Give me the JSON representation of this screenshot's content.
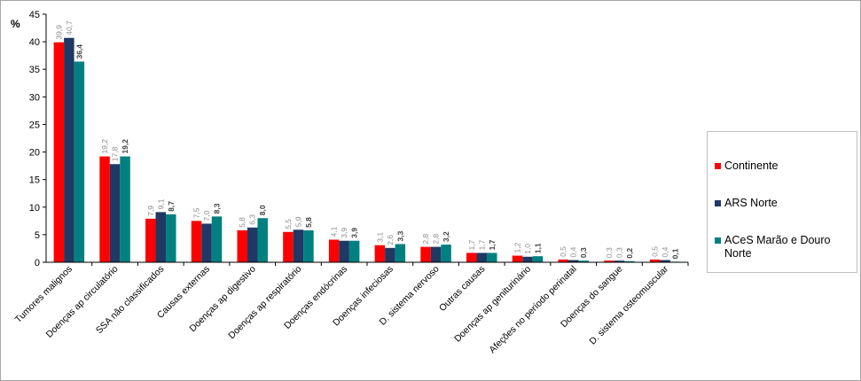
{
  "chart_data": {
    "type": "bar",
    "ylabel": "%",
    "ylim": [
      0,
      45
    ],
    "yticks": [
      0,
      5,
      10,
      15,
      20,
      25,
      30,
      35,
      40,
      45
    ],
    "categories": [
      "Tumores malignos",
      "Doenças ap circulatório",
      "SSA não classificados",
      "Causas externas",
      "Doenças ap digestivo",
      "Doenças ap respiratório",
      "Doenças endócrinas",
      "Doenças infeciosas",
      "D. sistema nervoso",
      "Outras causas",
      "Doenças ap geniturinário",
      "Afeções no período perinatal",
      "Doenças do sangue",
      "D. sistema osteomuscular"
    ],
    "series": [
      {
        "name": "Continente",
        "color": "#ff0000",
        "label_color": "#8c8c8c",
        "label_bold": false,
        "values": [
          39.9,
          19.2,
          7.9,
          7.5,
          5.8,
          5.5,
          4.1,
          3.1,
          2.8,
          1.7,
          1.2,
          0.5,
          0.3,
          0.5
        ],
        "labels": [
          "39,9",
          "19,2",
          "7,9",
          "7,5",
          "5,8",
          "5,5",
          "4,1",
          "3,1",
          "2,8",
          "1,7",
          "1,2",
          "0,5",
          "0,3",
          "0,5"
        ]
      },
      {
        "name": "ARS Norte",
        "color": "#1f3864",
        "label_color": "#8c8c8c",
        "label_bold": false,
        "values": [
          40.7,
          17.8,
          9.1,
          7.0,
          6.3,
          5.9,
          3.9,
          2.6,
          2.8,
          1.7,
          1.0,
          0.4,
          0.3,
          0.4
        ],
        "labels": [
          "40,7",
          "17,8",
          "9,1",
          "7,0",
          "6,3",
          "5,9",
          "3,9",
          "2,6",
          "2,8",
          "1,7",
          "1,0",
          "0,4",
          "0,3",
          "0,4"
        ]
      },
      {
        "name": "ACeS Marão e Douro Norte",
        "color": "#008080",
        "label_color": "#404040",
        "label_bold": true,
        "values": [
          36.4,
          19.2,
          8.7,
          8.3,
          8.0,
          5.8,
          3.9,
          3.3,
          3.2,
          1.7,
          1.1,
          0.3,
          0.2,
          0.1
        ],
        "labels": [
          "36,4",
          "19,2",
          "8,7",
          "8,3",
          "8,0",
          "5,8",
          "3,9",
          "3,3",
          "3,2",
          "1,7",
          "1,1",
          "0,3",
          "0,2",
          "0,1"
        ]
      }
    ],
    "legend_position": "right",
    "grid": false
  }
}
